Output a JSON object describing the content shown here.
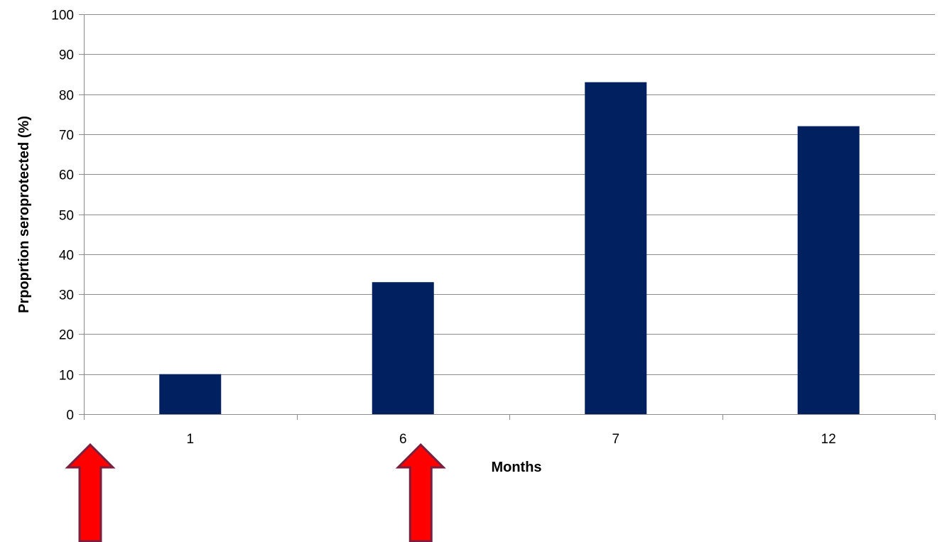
{
  "chart_data": {
    "type": "bar",
    "categories": [
      "1",
      "6",
      "7",
      "12"
    ],
    "values": [
      10,
      33,
      83,
      72
    ],
    "title": "",
    "xlabel": "Months",
    "ylabel": "Prpoprtion seroprotected (%)",
    "ylim": [
      0,
      100
    ],
    "yticks": [
      0,
      10,
      20,
      30,
      40,
      50,
      60,
      70,
      80,
      90,
      100
    ],
    "grid": true,
    "legend": "none",
    "bar_color": "#002060",
    "annotations": [
      {
        "type": "arrow",
        "direction": "up",
        "at_boundary": "before-first-category",
        "fill": "#ff0000",
        "stroke": "#7b1f3e"
      },
      {
        "type": "arrow",
        "direction": "up",
        "at_category": "6",
        "fill": "#ff0000",
        "stroke": "#7b1f3e"
      }
    ]
  }
}
